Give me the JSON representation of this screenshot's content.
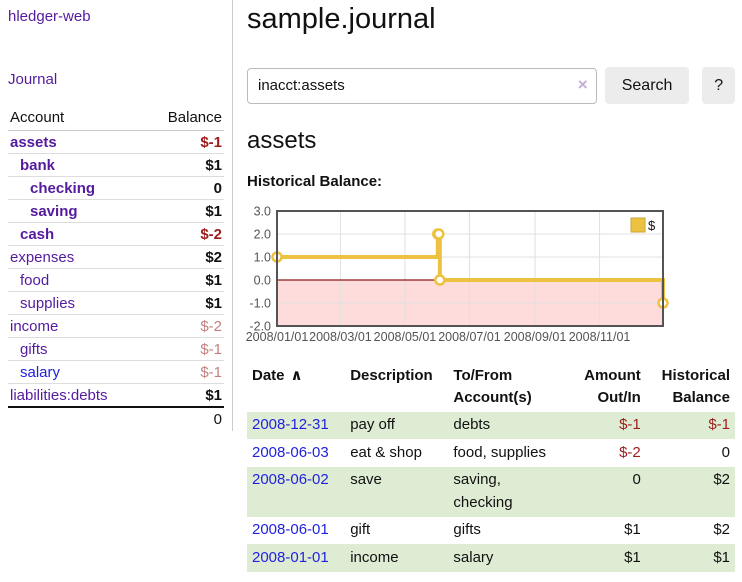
{
  "app": {
    "brand": "hledger-web",
    "nav_journal": "Journal"
  },
  "sidebar": {
    "table_headers": {
      "account": "Account",
      "balance": "Balance"
    },
    "accounts": [
      {
        "name": "assets",
        "indent": 1,
        "bold": true,
        "balance": "$-1",
        "balance_style": "strong-negative"
      },
      {
        "name": "bank",
        "indent": 2,
        "bold": true,
        "balance": "$1",
        "balance_style": "positive"
      },
      {
        "name": "checking",
        "indent": 3,
        "bold": true,
        "balance": "0",
        "balance_style": "positive"
      },
      {
        "name": "saving",
        "indent": 3,
        "bold": true,
        "balance": "$1",
        "balance_style": "positive"
      },
      {
        "name": "cash",
        "indent": 2,
        "bold": true,
        "balance": "$-2",
        "balance_style": "strong-negative"
      },
      {
        "name": "expenses",
        "indent": 1,
        "bold": false,
        "balance": "$2",
        "balance_style": "positive"
      },
      {
        "name": "food",
        "indent": 2,
        "bold": false,
        "balance": "$1",
        "balance_style": "positive"
      },
      {
        "name": "supplies",
        "indent": 2,
        "bold": false,
        "balance": "$1",
        "balance_style": "positive"
      },
      {
        "name": "income",
        "indent": 1,
        "bold": false,
        "balance": "$-2",
        "balance_style": "soft-negative"
      },
      {
        "name": "gifts",
        "indent": 2,
        "bold": false,
        "balance": "$-1",
        "balance_style": "soft-negative"
      },
      {
        "name": "salary",
        "indent": 2,
        "bold": false,
        "balance": "$-1",
        "balance_style": "soft-negative",
        "link_color": "blue"
      },
      {
        "name": "liabilities:debts",
        "indent": 1,
        "bold": false,
        "balance": "$1",
        "balance_style": "positive"
      }
    ],
    "total": "0"
  },
  "header": {
    "title": "sample.journal"
  },
  "search": {
    "value": "inacct:assets",
    "clear_icon": "×",
    "button": "Search",
    "help_button": "?"
  },
  "account_page": {
    "heading": "assets",
    "chart_label": "Historical Balance:"
  },
  "chart_data": {
    "type": "line",
    "step": true,
    "title": "Historical Balance",
    "series": [
      {
        "name": "$",
        "color": "#edc240",
        "points": [
          [
            "2008-01-01",
            1
          ],
          [
            "2008-06-01",
            2
          ],
          [
            "2008-06-02",
            2
          ],
          [
            "2008-06-03",
            0
          ],
          [
            "2008-12-31",
            -1
          ]
        ]
      }
    ],
    "xrange": [
      "2008-01-01",
      "2008-12-31"
    ],
    "ylim": [
      -2,
      3
    ],
    "yticks": [
      3.0,
      2.0,
      1.0,
      0.0,
      -1.0,
      -2.0
    ],
    "xticks": [
      "2008/01/01",
      "2008/03/01",
      "2008/05/01",
      "2008/07/01",
      "2008/09/01",
      "2008/11/01"
    ],
    "grid": true,
    "legend_position": "top-right",
    "negative_region_fill": "#ffdcdc",
    "zero_line_color": "#8b1a1a",
    "border_color": "#545454",
    "grid_color": "#e0e0e0",
    "tick_label_color": "#545454"
  },
  "register": {
    "columns": [
      {
        "label": "Date",
        "sort_icon": "∧"
      },
      {
        "label": "Description"
      },
      {
        "label": "To/From Account(s)"
      },
      {
        "label": "Amount Out/In",
        "align": "right"
      },
      {
        "label": "Historical Balance",
        "align": "right"
      }
    ],
    "rows": [
      {
        "date": "2008-12-31",
        "description": "pay off",
        "accounts": "debts",
        "amount": "$-1",
        "amount_negative": true,
        "balance": "$-1",
        "balance_negative": true
      },
      {
        "date": "2008-06-03",
        "description": "eat & shop",
        "accounts": "food, supplies",
        "amount": "$-2",
        "amount_negative": true,
        "balance": "0",
        "balance_negative": false
      },
      {
        "date": "2008-06-02",
        "description": "save",
        "accounts": "saving, checking",
        "amount": "0",
        "amount_negative": false,
        "balance": "$2",
        "balance_negative": false
      },
      {
        "date": "2008-06-01",
        "description": "gift",
        "accounts": "gifts",
        "amount": "$1",
        "amount_negative": false,
        "balance": "$2",
        "balance_negative": false
      },
      {
        "date": "2008-01-01",
        "description": "income",
        "accounts": "salary",
        "amount": "$1",
        "amount_negative": false,
        "balance": "$1",
        "balance_negative": false
      }
    ]
  }
}
